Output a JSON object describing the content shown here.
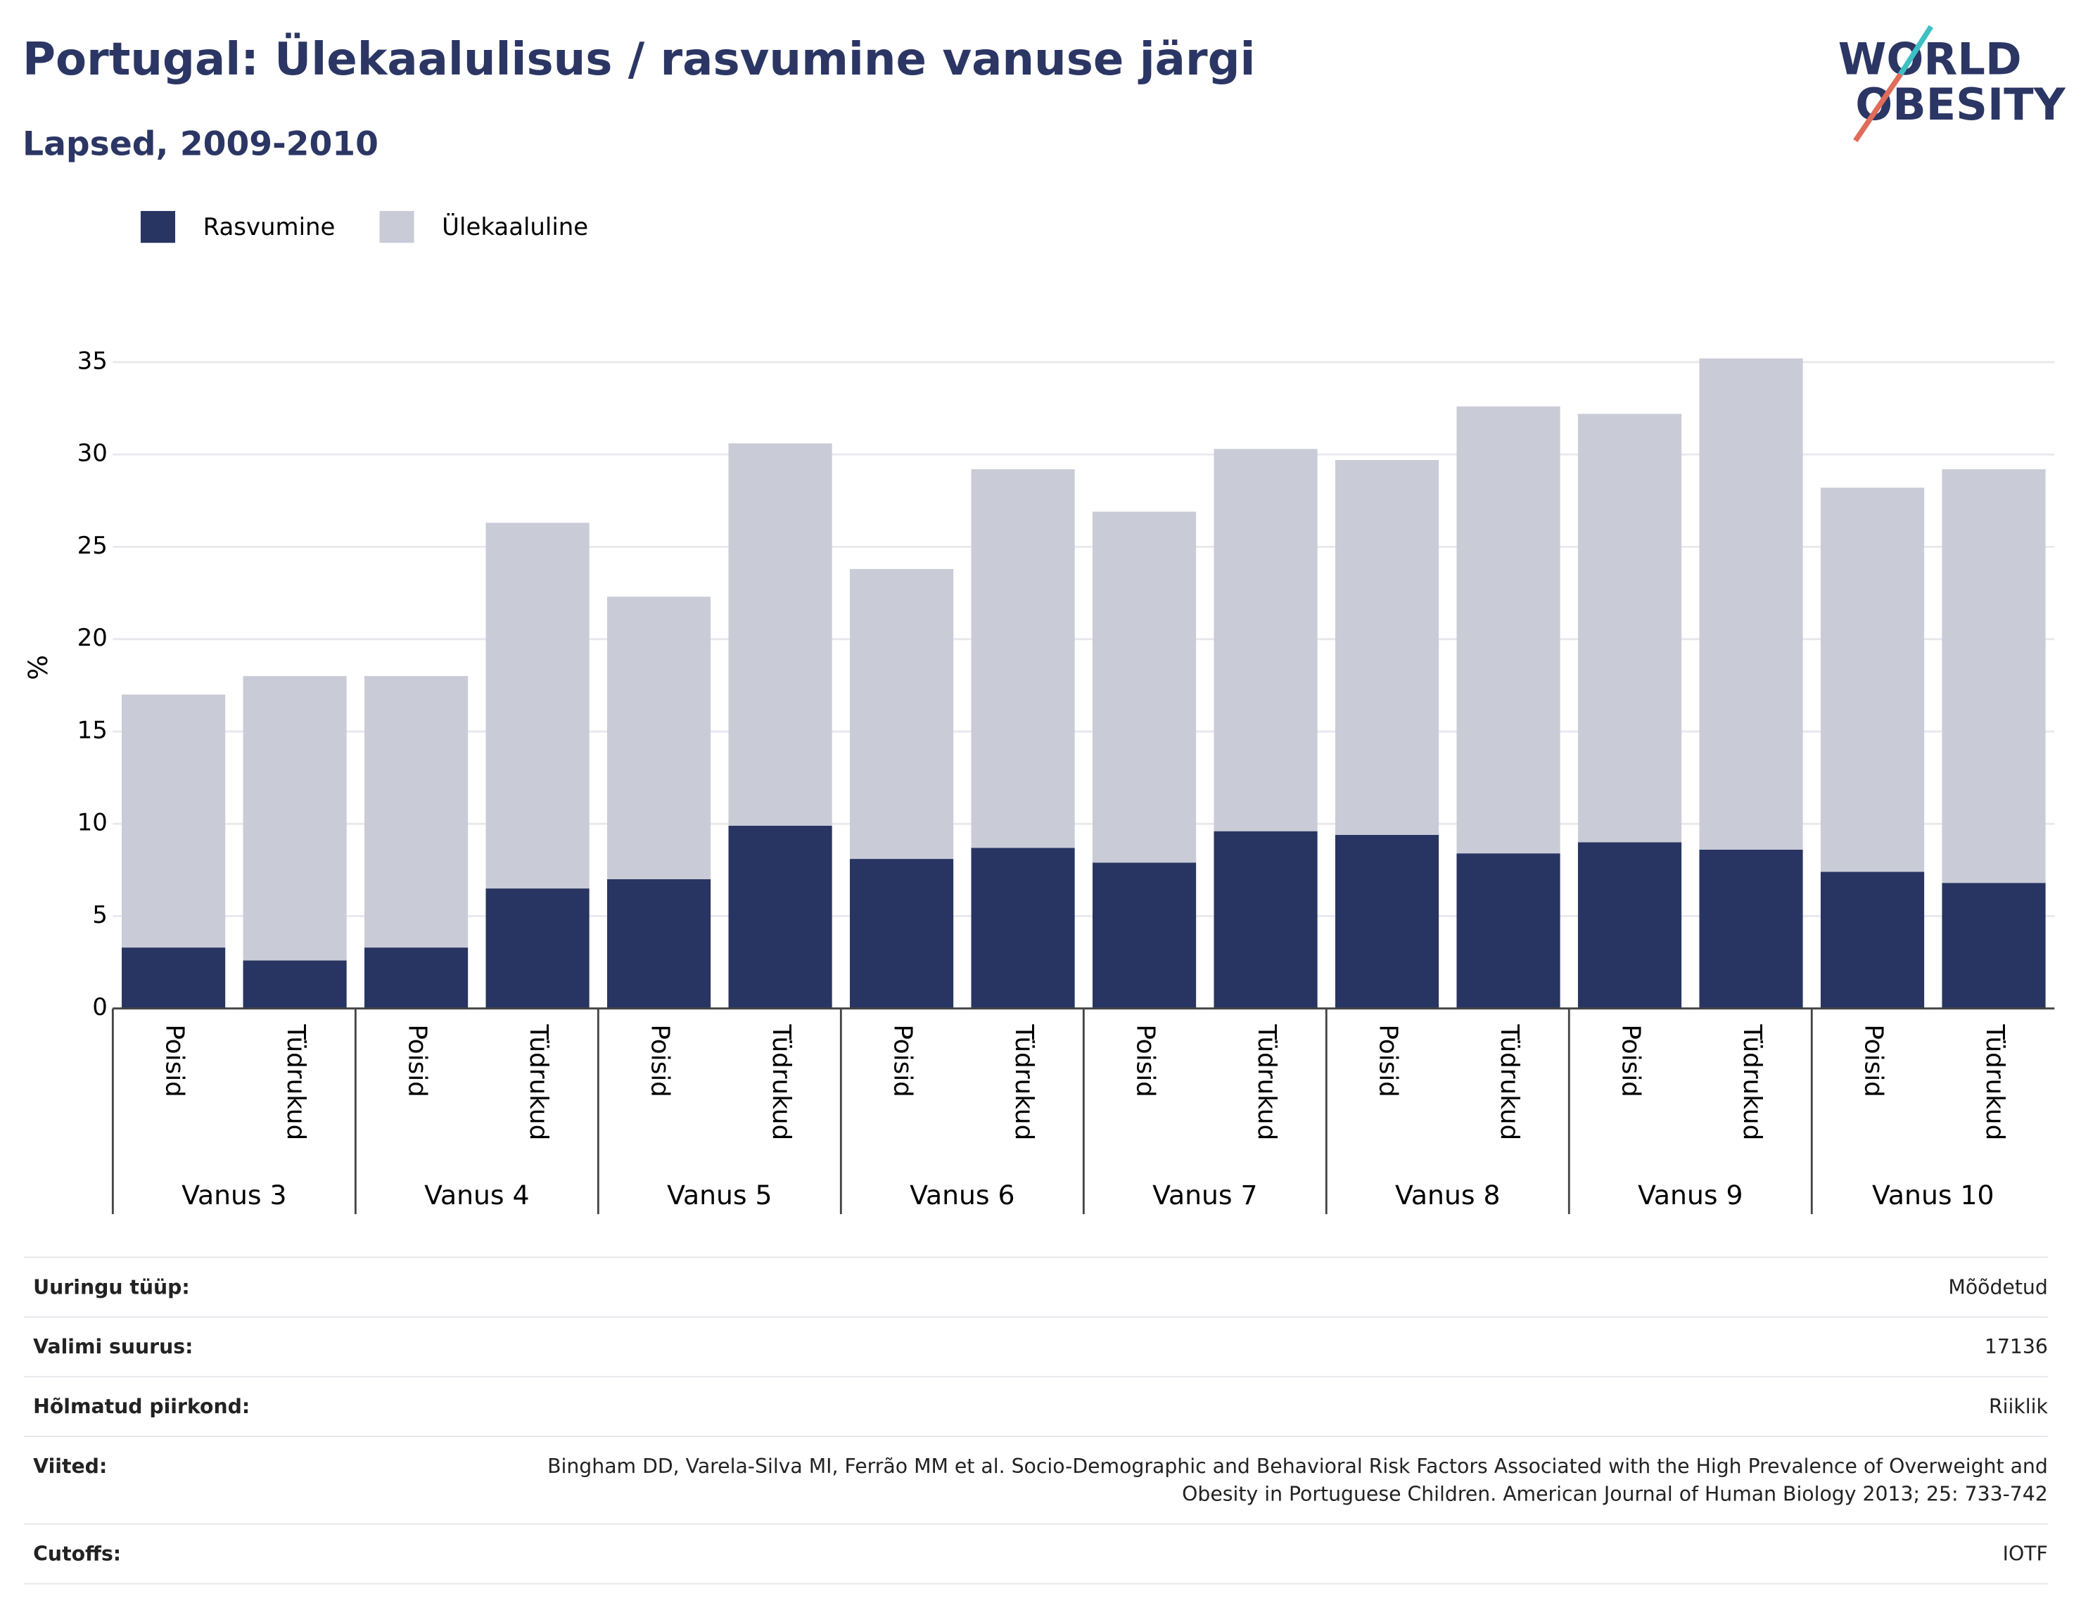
{
  "chart_data": {
    "type": "stacked_bar",
    "title": "Portugal: Ülekaalulisus / rasvumine vanuse järgi",
    "subtitle": "Lapsed, 2009-2010",
    "ylabel": "%",
    "logo": [
      "WORLD",
      "OBESITY"
    ],
    "categories": [
      "Poisid",
      "Tüdrukud",
      "Poisid",
      "Tüdrukud",
      "Poisid",
      "Tüdrukud",
      "Poisid",
      "Tüdrukud",
      "Poisid",
      "Tüdrukud",
      "Poisid",
      "Tüdrukud",
      "Poisid",
      "Tüdrukud",
      "Poisid",
      "Tüdrukud"
    ],
    "groups": [
      "Vanus 3",
      "Vanus 4",
      "Vanus 5",
      "Vanus 6",
      "Vanus 7",
      "Vanus 8",
      "Vanus 9",
      "Vanus 10"
    ],
    "series": [
      {
        "name": "Rasvumine",
        "color": "#283562",
        "values": [
          3.3,
          2.6,
          3.3,
          6.5,
          7.0,
          9.9,
          8.1,
          8.7,
          7.9,
          9.6,
          9.4,
          8.4,
          9.0,
          8.6,
          7.4,
          6.8
        ]
      },
      {
        "name": "Ülekaaluline",
        "color": "#c9cbd7",
        "values": [
          13.7,
          15.4,
          14.7,
          19.8,
          15.3,
          20.7,
          15.7,
          20.5,
          19.0,
          20.7,
          20.3,
          24.2,
          23.2,
          26.6,
          20.8,
          22.4
        ]
      }
    ],
    "ylim": [
      0,
      36
    ],
    "yticks": [
      0,
      5,
      10,
      15,
      20,
      25,
      30,
      35
    ],
    "grid": true,
    "legend": "top-left"
  },
  "table": {
    "rows": [
      [
        "Uuringu tüüp:",
        "Mõõdetud"
      ],
      [
        "Valimi suurus:",
        "17136"
      ],
      [
        "Hõlmatud piirkond:",
        "Riiklik"
      ],
      [
        "Viited:",
        "Bingham DD, Varela-Silva MI, Ferrão MM et al. Socio-Demographic and Behavioral Risk Factors Associated with the High Prevalence of Overweight and Obesity in Portuguese Children. American Journal of Human Biology 2013; 25: 733-742"
      ],
      [
        "Cutoffs:",
        "IOTF"
      ]
    ]
  }
}
